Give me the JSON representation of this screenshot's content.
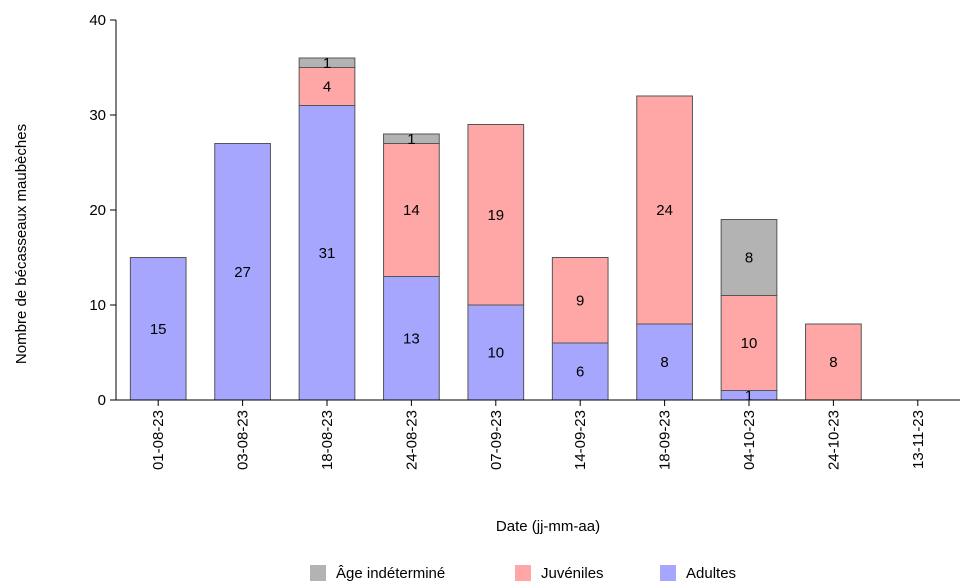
{
  "chart_data": {
    "type": "bar",
    "stacked": true,
    "xlabel": "Date (jj-mm-aa)",
    "ylabel": "Nombre de bécasseaux maubèches",
    "ylim": [
      0,
      40
    ],
    "yticks": [
      0,
      10,
      20,
      30,
      40
    ],
    "categories": [
      "01-08-23",
      "03-08-23",
      "18-08-23",
      "24-08-23",
      "07-09-23",
      "14-09-23",
      "18-09-23",
      "04-10-23",
      "24-10-23",
      "13-11-23"
    ],
    "series": [
      {
        "name": "Adultes",
        "color": "#a6a6ff",
        "values": [
          15,
          27,
          31,
          13,
          10,
          6,
          8,
          1,
          0,
          0
        ]
      },
      {
        "name": "Juvéniles",
        "color": "#ffa6a6",
        "values": [
          0,
          0,
          4,
          14,
          19,
          9,
          24,
          10,
          8,
          0
        ]
      },
      {
        "name": "Âge indéterminé",
        "color": "#b3b3b3",
        "values": [
          0,
          0,
          1,
          1,
          0,
          0,
          0,
          8,
          0,
          0
        ]
      }
    ],
    "legend": {
      "position": "bottom",
      "order": [
        "Âge indéterminé",
        "Juvéniles",
        "Adultes"
      ]
    },
    "grid": false
  }
}
